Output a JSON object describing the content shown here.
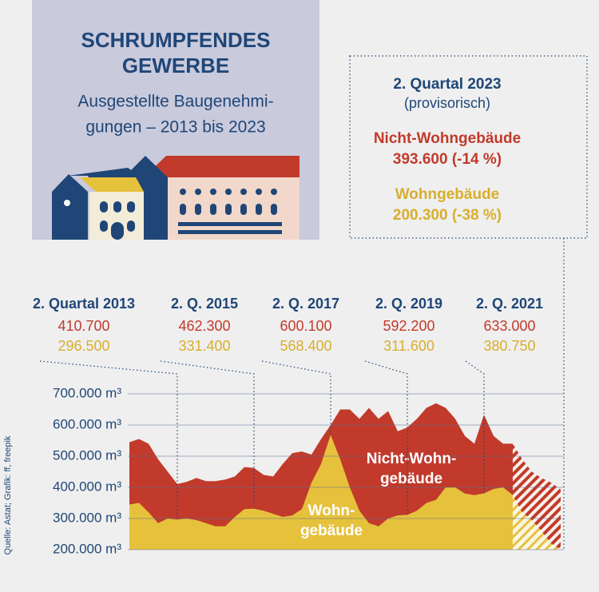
{
  "chart_data": {
    "type": "area",
    "title": [
      "SCHRUMPFENDES",
      "GEWERBE"
    ],
    "subtitle": [
      "Ausgestellte Baugenehmi-",
      "gungen – 2013 bis 2023"
    ],
    "note": "(provisorisch)",
    "source": "Quelle: Astat; Grafik: ff, freepik",
    "area_labels": [
      [
        "Nicht-Wohn-",
        "gebäude"
      ],
      [
        "Wohn-",
        "gebäude"
      ]
    ],
    "categories": [
      null,
      null,
      null,
      null,
      null,
      "2. Quartal 2013",
      null,
      null,
      null,
      null,
      null,
      null,
      null,
      "2. Q. 2015",
      null,
      null,
      null,
      null,
      null,
      null,
      null,
      "2. Q. 2017",
      null,
      null,
      null,
      null,
      null,
      null,
      null,
      "2. Q. 2019",
      null,
      null,
      null,
      null,
      null,
      null,
      null,
      "2. Q. 2021",
      null,
      null,
      null,
      null,
      null,
      null,
      null,
      "2. Quartal 2023"
    ],
    "provisional_from": 40,
    "series": [
      {
        "name": "Nicht-Wohngebäude",
        "color": "#c23a2b",
        "values": [
          545000,
          555000,
          540000,
          490000,
          450000,
          410700,
          418000,
          430000,
          420000,
          420000,
          425000,
          435000,
          465000,
          462300,
          440000,
          435000,
          475000,
          510000,
          515000,
          505000,
          555000,
          600100,
          650000,
          650000,
          620000,
          655000,
          620000,
          645000,
          580000,
          592200,
          620000,
          655000,
          670000,
          655000,
          620000,
          565000,
          540000,
          633000,
          565000,
          540000,
          540000,
          490000,
          450000,
          430000,
          415000,
          393600
        ],
        "value_labels": [
          null,
          null,
          null,
          null,
          null,
          "410.700",
          null,
          null,
          null,
          null,
          null,
          null,
          null,
          "462.300",
          null,
          null,
          null,
          null,
          null,
          null,
          null,
          "600.100",
          null,
          null,
          null,
          null,
          null,
          null,
          null,
          "592.200",
          null,
          null,
          null,
          null,
          null,
          null,
          null,
          "633.000",
          null,
          null,
          null,
          null,
          null,
          null,
          null,
          "393.600 (-14 %)"
        ]
      },
      {
        "name": "Wohngebäude",
        "color": "#e6c13c",
        "values": [
          345000,
          350000,
          320000,
          285000,
          300000,
          296500,
          300000,
          295000,
          285000,
          275000,
          275000,
          305000,
          330000,
          331400,
          325000,
          315000,
          305000,
          310000,
          330000,
          415000,
          475000,
          568400,
          490000,
          400000,
          325000,
          285000,
          275000,
          300000,
          310000,
          311600,
          325000,
          350000,
          360000,
          400000,
          400000,
          380000,
          375000,
          380750,
          395000,
          400000,
          375000,
          320000,
          295000,
          260000,
          220000,
          200300
        ],
        "value_labels": [
          null,
          null,
          null,
          null,
          null,
          "296.500",
          null,
          null,
          null,
          null,
          null,
          null,
          null,
          "331.400",
          null,
          null,
          null,
          null,
          null,
          null,
          null,
          "568.400",
          null,
          null,
          null,
          null,
          null,
          null,
          null,
          "311.600",
          null,
          null,
          null,
          null,
          null,
          null,
          null,
          "380.750",
          null,
          null,
          null,
          null,
          null,
          null,
          null,
          "200.300 (-38 %)"
        ]
      }
    ],
    "ylim": [
      200000,
      700000
    ],
    "yticks": [
      {
        "value": 200000,
        "label": "200.000 m³"
      },
      {
        "value": 300000,
        "label": "300.000 m³"
      },
      {
        "value": 400000,
        "label": "400.000 m³"
      },
      {
        "value": 500000,
        "label": "500.000 m³"
      },
      {
        "value": 600000,
        "label": "600.000 m³"
      },
      {
        "value": 700000,
        "label": "700.000 m³"
      }
    ],
    "grid": true
  }
}
